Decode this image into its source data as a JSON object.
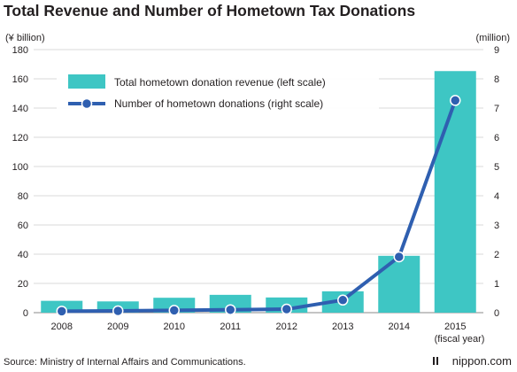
{
  "chart_data": {
    "type": "bar",
    "title": "Total Revenue and Number of Hometown Tax Donations",
    "left_unit": "(¥ billion)",
    "right_unit": "(million)",
    "categories": [
      "2008",
      "2009",
      "2010",
      "2011",
      "2012",
      "2013",
      "2014",
      "2015"
    ],
    "category_note": "(fiscal year)",
    "ylim_left": [
      0,
      180
    ],
    "ylim_right": [
      0,
      9
    ],
    "left_ticks": [
      "0",
      "20",
      "40",
      "60",
      "80",
      "100",
      "120",
      "140",
      "160",
      "180"
    ],
    "right_ticks": [
      "0",
      "1",
      "2",
      "3",
      "4",
      "5",
      "6",
      "7",
      "8",
      "9"
    ],
    "grid": true,
    "legend_position": "top-left",
    "series": [
      {
        "name": "Total hometown donation revenue (left scale)",
        "type": "bar",
        "axis": "left",
        "color": "#3ec6c4",
        "values": [
          8.1,
          7.7,
          10.2,
          12.2,
          10.4,
          14.6,
          38.9,
          165.3
        ]
      },
      {
        "name": "Number of hometown donations (right scale)",
        "type": "line",
        "axis": "right",
        "color": "#2f5fb0",
        "values": [
          0.05,
          0.06,
          0.08,
          0.1,
          0.12,
          0.43,
          1.91,
          7.26
        ]
      }
    ]
  },
  "footer": {
    "source": "Source: Ministry of Internal Affairs and Communications.",
    "brand": "nippon.com"
  }
}
